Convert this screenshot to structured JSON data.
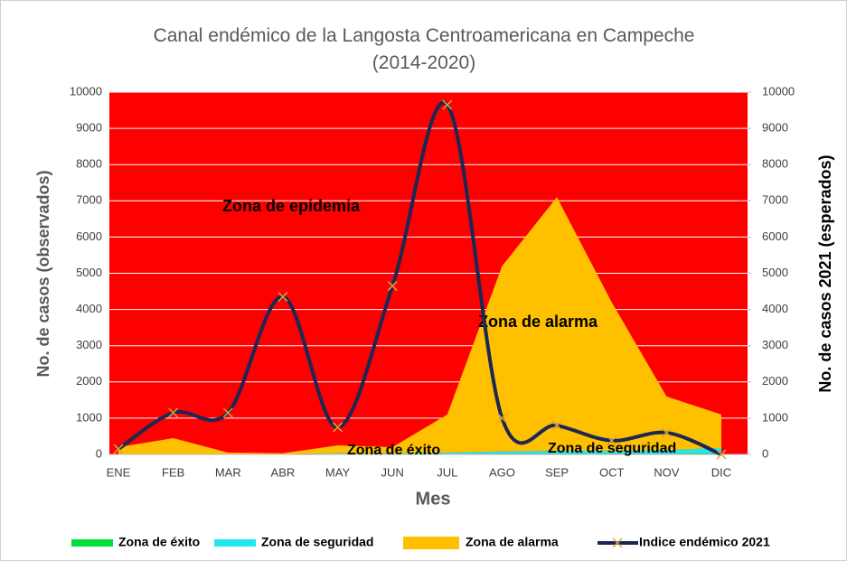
{
  "chart_data": {
    "type": "area-line",
    "title": "Canal endémico de la Langosta Centroamericana en Campeche (2014-2020)",
    "x_label": "Mes",
    "y_label": "No. de  casos (observados)",
    "y2_label": "No. de casos 2021 (esperados)",
    "categories": [
      "ENE",
      "FEB",
      "MAR",
      "ABR",
      "MAY",
      "JUN",
      "JUL",
      "AGO",
      "SEP",
      "OCT",
      "NOV",
      "DIC"
    ],
    "ylim": [
      0,
      10000
    ],
    "yticks": [
      0,
      1000,
      2000,
      3000,
      4000,
      5000,
      6000,
      7000,
      8000,
      9000,
      10000
    ],
    "y2lim": [
      0,
      10000
    ],
    "y2ticks": [
      0,
      1000,
      2000,
      3000,
      4000,
      5000,
      6000,
      7000,
      8000,
      9000,
      10000
    ],
    "grid": true,
    "background_color": "#ff0000",
    "series": [
      {
        "name": "Zona de éxito",
        "color": "#00e03a",
        "kind": "area",
        "values": [
          0,
          0,
          0,
          0,
          10,
          10,
          10,
          20,
          20,
          20,
          20,
          30
        ]
      },
      {
        "name": "Zona de seguridad",
        "color": "#1fe8f0",
        "kind": "area",
        "values": [
          10,
          10,
          10,
          10,
          20,
          20,
          40,
          60,
          80,
          80,
          100,
          150
        ]
      },
      {
        "name": "Zona de alarma",
        "color": "#ffc000",
        "kind": "area",
        "values": [
          190,
          440,
          40,
          20,
          220,
          170,
          1050,
          5120,
          7000,
          4100,
          1480,
          920
        ]
      },
      {
        "name": "Indice endémico 2021",
        "color": "#1c2754",
        "marker_color": "#d9a53a",
        "kind": "line",
        "values": [
          150,
          1150,
          1150,
          4350,
          750,
          4650,
          9650,
          1000,
          800,
          380,
          600,
          0
        ]
      }
    ],
    "annotations": [
      "Zona de epidemia",
      "Zona de alarma",
      "Zona de éxito",
      "Zona de seguridad"
    ],
    "legend": "bottom"
  }
}
